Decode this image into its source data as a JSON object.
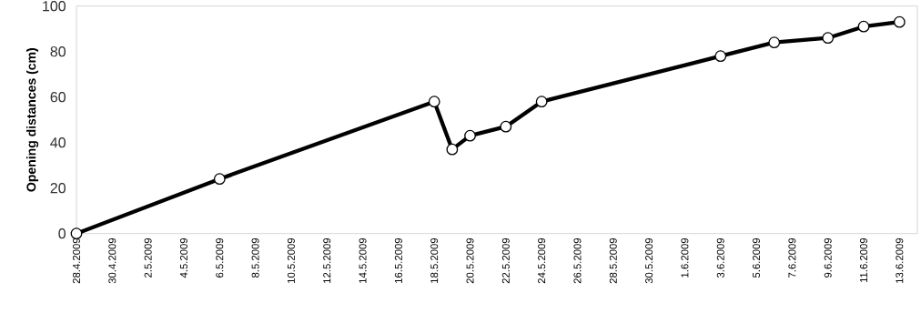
{
  "chart_data": {
    "type": "line",
    "ylabel": "Opening distances (cm)",
    "x": [
      "2009-04-28",
      "2009-05-06",
      "2009-05-18",
      "2009-05-19",
      "2009-05-20",
      "2009-05-22",
      "2009-05-24",
      "2009-06-03",
      "2009-06-06",
      "2009-06-09",
      "2009-06-11",
      "2009-06-13"
    ],
    "series": [
      {
        "color": "#000000",
        "values": [
          0,
          24,
          58,
          37,
          43,
          47,
          58,
          78,
          84,
          86,
          91,
          93
        ]
      }
    ],
    "xlim": [
      "2009-04-28",
      "2009-06-14"
    ],
    "xticks": [
      {
        "value": "2009-04-28",
        "label": "28.4.2009"
      },
      {
        "value": "2009-04-30",
        "label": "30.4.2009"
      },
      {
        "value": "2009-05-02",
        "label": "2.5.2009"
      },
      {
        "value": "2009-05-04",
        "label": "4.5.2009"
      },
      {
        "value": "2009-05-06",
        "label": "6.5.2009"
      },
      {
        "value": "2009-05-08",
        "label": "8.5.2009"
      },
      {
        "value": "2009-05-10",
        "label": "10.5.2009"
      },
      {
        "value": "2009-05-12",
        "label": "12.5.2009"
      },
      {
        "value": "2009-05-14",
        "label": "14.5.2009"
      },
      {
        "value": "2009-05-16",
        "label": "16.5.2009"
      },
      {
        "value": "2009-05-18",
        "label": "18.5.2009"
      },
      {
        "value": "2009-05-20",
        "label": "20.5.2009"
      },
      {
        "value": "2009-05-22",
        "label": "22.5.2009"
      },
      {
        "value": "2009-05-24",
        "label": "24.5.2009"
      },
      {
        "value": "2009-05-26",
        "label": "26.5.2009"
      },
      {
        "value": "2009-05-28",
        "label": "28.5.2009"
      },
      {
        "value": "2009-05-30",
        "label": "30.5.2009"
      },
      {
        "value": "2009-06-01",
        "label": "1.6.2009"
      },
      {
        "value": "2009-06-03",
        "label": "3.6.2009"
      },
      {
        "value": "2009-06-05",
        "label": "5.6.2009"
      },
      {
        "value": "2009-06-07",
        "label": "7.6.2009"
      },
      {
        "value": "2009-06-09",
        "label": "9.6.2009"
      },
      {
        "value": "2009-06-11",
        "label": "11.6.2009"
      },
      {
        "value": "2009-06-13",
        "label": "13.6.2009"
      }
    ],
    "ylim": [
      0,
      100
    ],
    "yticks": [
      0,
      20,
      40,
      60,
      80,
      100
    ],
    "marker": "circle",
    "line_style": "solid"
  }
}
